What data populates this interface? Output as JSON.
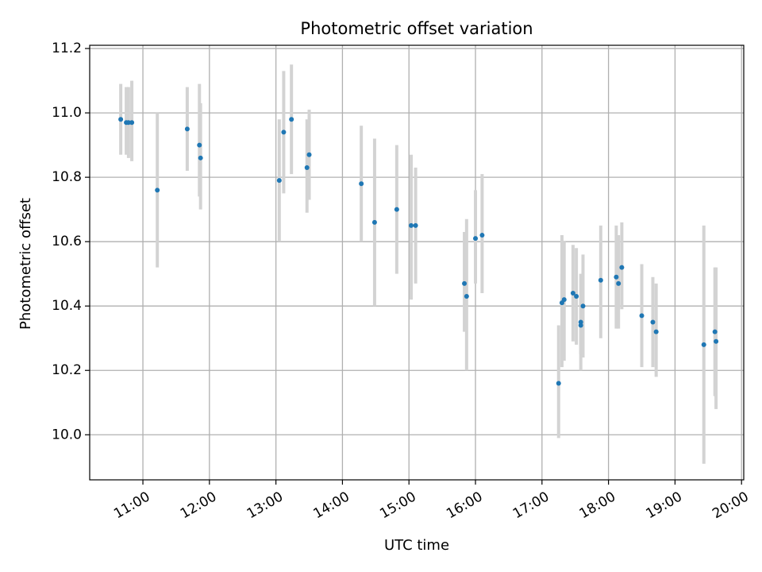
{
  "chart_data": {
    "type": "scatter",
    "title": "Photometric offset variation",
    "xlabel": "UTC time",
    "ylabel": "Photometric offset",
    "x_ticks": [
      "11:00",
      "12:00",
      "13:00",
      "14:00",
      "15:00",
      "16:00",
      "17:00",
      "18:00",
      "19:00",
      "20:00"
    ],
    "y_ticks": [
      "10.0",
      "10.2",
      "10.4",
      "10.6",
      "10.8",
      "11.0",
      "11.2"
    ],
    "xlim": [
      "10:12",
      "20:02"
    ],
    "ylim": [
      9.86,
      11.21
    ],
    "grid": true,
    "point_color": "#1f77b4",
    "errorbar_color": "#d3d3d3",
    "points": [
      {
        "x": "10:40",
        "y": 10.98,
        "ylow": 10.87,
        "yhigh": 11.09
      },
      {
        "x": "10:45",
        "y": 10.97,
        "ylow": 10.87,
        "yhigh": 11.08
      },
      {
        "x": "10:47",
        "y": 10.97,
        "ylow": 10.86,
        "yhigh": 11.08
      },
      {
        "x": "10:50",
        "y": 10.97,
        "ylow": 10.85,
        "yhigh": 11.1
      },
      {
        "x": "11:13",
        "y": 10.76,
        "ylow": 10.52,
        "yhigh": 11.0
      },
      {
        "x": "11:40",
        "y": 10.95,
        "ylow": 10.82,
        "yhigh": 11.08
      },
      {
        "x": "11:51",
        "y": 10.9,
        "ylow": 10.74,
        "yhigh": 11.09
      },
      {
        "x": "11:52",
        "y": 10.86,
        "ylow": 10.7,
        "yhigh": 11.03
      },
      {
        "x": "13:03",
        "y": 10.79,
        "ylow": 10.6,
        "yhigh": 10.98
      },
      {
        "x": "13:07",
        "y": 10.94,
        "ylow": 10.75,
        "yhigh": 11.13
      },
      {
        "x": "13:14",
        "y": 10.98,
        "ylow": 10.81,
        "yhigh": 11.15
      },
      {
        "x": "13:28",
        "y": 10.83,
        "ylow": 10.69,
        "yhigh": 10.98
      },
      {
        "x": "13:30",
        "y": 10.87,
        "ylow": 10.73,
        "yhigh": 11.01
      },
      {
        "x": "14:17",
        "y": 10.78,
        "ylow": 10.6,
        "yhigh": 10.96
      },
      {
        "x": "14:29",
        "y": 10.66,
        "ylow": 10.4,
        "yhigh": 10.92
      },
      {
        "x": "14:49",
        "y": 10.7,
        "ylow": 10.5,
        "yhigh": 10.9
      },
      {
        "x": "15:02",
        "y": 10.65,
        "ylow": 10.42,
        "yhigh": 10.87
      },
      {
        "x": "15:06",
        "y": 10.65,
        "ylow": 10.47,
        "yhigh": 10.83
      },
      {
        "x": "15:50",
        "y": 10.47,
        "ylow": 10.32,
        "yhigh": 10.63
      },
      {
        "x": "15:52",
        "y": 10.43,
        "ylow": 10.2,
        "yhigh": 10.67
      },
      {
        "x": "16:00",
        "y": 10.61,
        "ylow": 10.47,
        "yhigh": 10.76
      },
      {
        "x": "16:06",
        "y": 10.62,
        "ylow": 10.44,
        "yhigh": 10.81
      },
      {
        "x": "17:15",
        "y": 10.16,
        "ylow": 9.99,
        "yhigh": 10.34
      },
      {
        "x": "17:18",
        "y": 10.41,
        "ylow": 10.21,
        "yhigh": 10.62
      },
      {
        "x": "17:20",
        "y": 10.42,
        "ylow": 10.23,
        "yhigh": 10.6
      },
      {
        "x": "17:28",
        "y": 10.44,
        "ylow": 10.29,
        "yhigh": 10.59
      },
      {
        "x": "17:31",
        "y": 10.43,
        "ylow": 10.28,
        "yhigh": 10.58
      },
      {
        "x": "17:35",
        "y": 10.35,
        "ylow": 10.2,
        "yhigh": 10.5
      },
      {
        "x": "17:35",
        "y": 10.34,
        "ylow": 10.25,
        "yhigh": 10.43
      },
      {
        "x": "17:37",
        "y": 10.4,
        "ylow": 10.24,
        "yhigh": 10.56
      },
      {
        "x": "17:53",
        "y": 10.48,
        "ylow": 10.3,
        "yhigh": 10.65
      },
      {
        "x": "18:07",
        "y": 10.49,
        "ylow": 10.33,
        "yhigh": 10.65
      },
      {
        "x": "18:09",
        "y": 10.47,
        "ylow": 10.33,
        "yhigh": 10.62
      },
      {
        "x": "18:12",
        "y": 10.52,
        "ylow": 10.39,
        "yhigh": 10.66
      },
      {
        "x": "18:30",
        "y": 10.37,
        "ylow": 10.21,
        "yhigh": 10.53
      },
      {
        "x": "18:40",
        "y": 10.35,
        "ylow": 10.21,
        "yhigh": 10.49
      },
      {
        "x": "18:43",
        "y": 10.32,
        "ylow": 10.18,
        "yhigh": 10.47
      },
      {
        "x": "19:26",
        "y": 10.28,
        "ylow": 9.91,
        "yhigh": 10.65
      },
      {
        "x": "19:36",
        "y": 10.32,
        "ylow": 10.12,
        "yhigh": 10.52
      },
      {
        "x": "19:37",
        "y": 10.29,
        "ylow": 10.08,
        "yhigh": 10.52
      }
    ]
  }
}
